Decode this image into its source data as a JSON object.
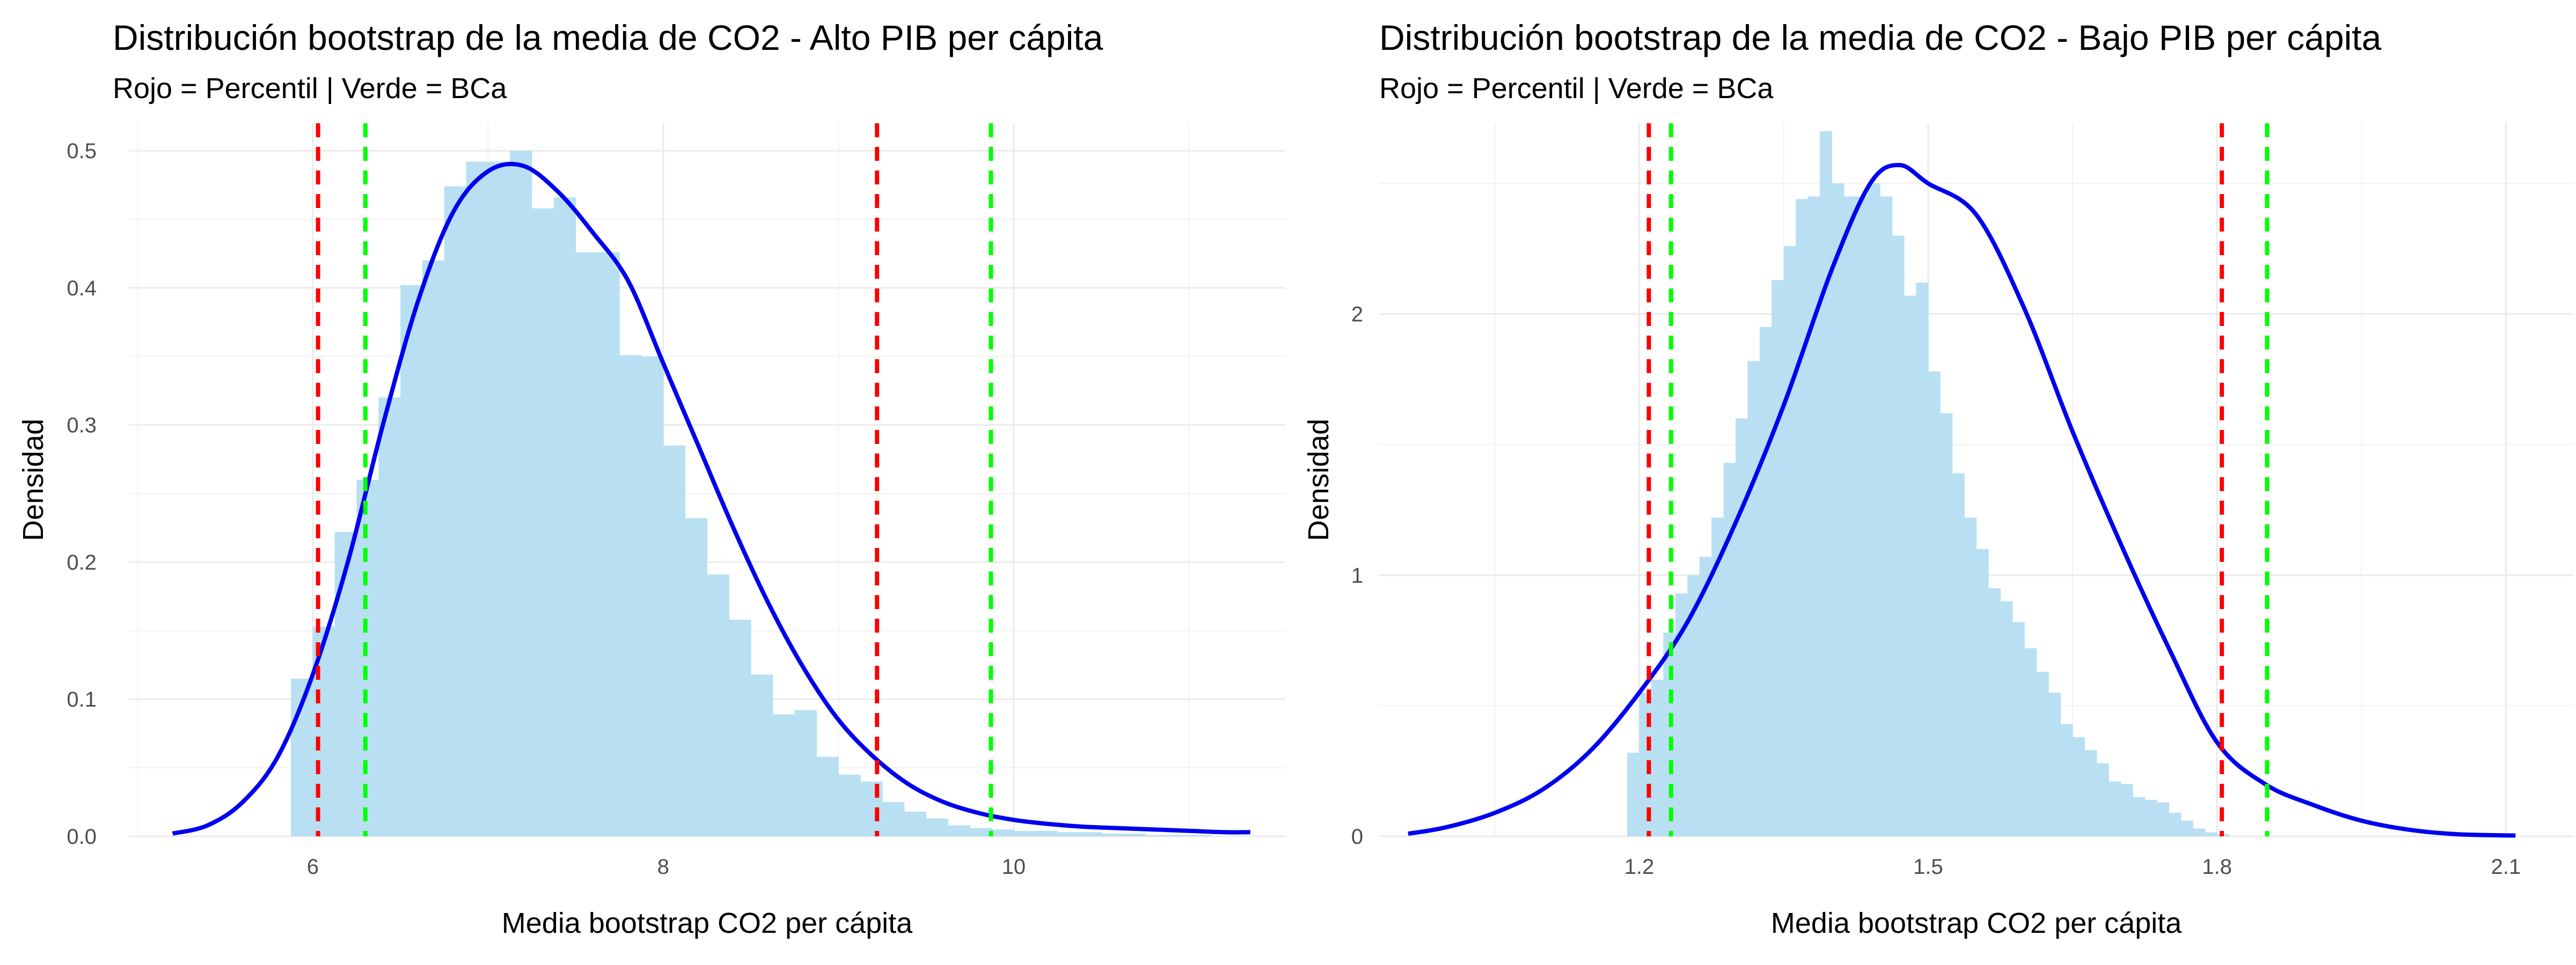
{
  "chart_data": [
    {
      "type": "histogram",
      "title": "Distribución bootstrap de la media de CO2 - Alto PIB per cápita",
      "subtitle": "Rojo = Percentil | Verde = BCa",
      "xlabel": "Media bootstrap CO2 per cápita",
      "ylabel": "Densidad",
      "xlim": [
        4.95,
        11.55
      ],
      "ylim": [
        0,
        0.52
      ],
      "x_ticks": [
        6,
        8,
        10
      ],
      "x_tick_labels": [
        "6",
        "8",
        "10"
      ],
      "y_ticks": [
        0.0,
        0.1,
        0.2,
        0.3,
        0.4,
        0.5
      ],
      "y_tick_labels": [
        "0.0",
        "0.1",
        "0.2",
        "0.3",
        "0.4",
        "0.5"
      ],
      "bin_width": 0.125,
      "bins_start": 5.875,
      "hist_values": [
        0.115,
        0.153,
        0.222,
        0.26,
        0.32,
        0.402,
        0.42,
        0.474,
        0.492,
        0.492,
        0.5,
        0.458,
        0.466,
        0.426,
        0.426,
        0.351,
        0.35,
        0.285,
        0.232,
        0.191,
        0.158,
        0.118,
        0.089,
        0.092,
        0.058,
        0.045,
        0.04,
        0.025,
        0.018,
        0.013,
        0.008,
        0.006,
        0.005,
        0.004,
        0.004,
        0.003,
        0.003,
        0.002,
        0.002,
        0.001,
        0.001,
        0.001
      ],
      "density_curve": {
        "x": [
          5.2,
          5.4,
          5.6,
          5.8,
          6.0,
          6.2,
          6.4,
          6.6,
          6.8,
          7.0,
          7.2,
          7.4,
          7.6,
          7.8,
          8.0,
          8.2,
          8.4,
          8.6,
          8.8,
          9.0,
          9.2,
          9.4,
          9.6,
          9.8,
          10.0,
          10.2,
          10.4,
          10.6,
          10.8,
          11.0,
          11.2,
          11.35
        ],
        "y": [
          0.002,
          0.008,
          0.025,
          0.058,
          0.118,
          0.2,
          0.3,
          0.39,
          0.455,
          0.485,
          0.489,
          0.47,
          0.44,
          0.405,
          0.345,
          0.285,
          0.225,
          0.17,
          0.123,
          0.085,
          0.058,
          0.038,
          0.025,
          0.017,
          0.012,
          0.009,
          0.007,
          0.006,
          0.005,
          0.004,
          0.003,
          0.003
        ],
        "color": "#0000ee"
      },
      "percentile_interval": [
        6.03,
        9.22
      ],
      "bca_interval": [
        6.3,
        9.87
      ],
      "percentile_color": "#ff0000",
      "bca_color": "#00ff00",
      "hist_color": "#b8e0f2"
    },
    {
      "type": "histogram",
      "title": "Distribución bootstrap de la media de CO2 - Bajo PIB per cápita",
      "subtitle": "Rojo = Percentil | Verde = BCa",
      "xlabel": "Media bootstrap CO2 per cápita",
      "ylabel": "Densidad",
      "xlim": [
        0.93,
        2.17
      ],
      "ylim": [
        0,
        2.73
      ],
      "x_ticks": [
        1.2,
        1.5,
        1.8,
        2.1
      ],
      "x_tick_labels": [
        "1.2",
        "1.5",
        "1.8",
        "2.1"
      ],
      "y_ticks": [
        0,
        1,
        2
      ],
      "y_tick_labels": [
        "0",
        "1",
        "2"
      ],
      "bin_width": 0.0125,
      "bins_start": 1.1875,
      "hist_values": [
        0.32,
        0.55,
        0.6,
        0.78,
        0.93,
        1.0,
        1.07,
        1.22,
        1.43,
        1.6,
        1.82,
        1.95,
        2.13,
        2.26,
        2.44,
        2.45,
        2.7,
        2.5,
        2.45,
        2.45,
        2.5,
        2.45,
        2.3,
        2.07,
        2.12,
        1.78,
        1.62,
        1.39,
        1.22,
        1.1,
        0.95,
        0.9,
        0.82,
        0.72,
        0.63,
        0.55,
        0.43,
        0.38,
        0.33,
        0.28,
        0.21,
        0.2,
        0.15,
        0.14,
        0.13,
        0.09,
        0.06,
        0.03,
        0.015,
        0.008
      ],
      "density_curve": {
        "x": [
          0.96,
          1.0,
          1.05,
          1.1,
          1.15,
          1.2,
          1.25,
          1.3,
          1.35,
          1.4,
          1.44,
          1.47,
          1.5,
          1.55,
          1.6,
          1.65,
          1.7,
          1.75,
          1.8,
          1.85,
          1.9,
          1.95,
          2.0,
          2.05,
          2.11
        ],
        "y": [
          0.01,
          0.035,
          0.09,
          0.18,
          0.33,
          0.55,
          0.82,
          1.2,
          1.65,
          2.17,
          2.5,
          2.57,
          2.5,
          2.38,
          2.02,
          1.55,
          1.12,
          0.72,
          0.36,
          0.2,
          0.12,
          0.06,
          0.025,
          0.008,
          0.003
        ],
        "color": "#0000ee"
      },
      "percentile_interval": [
        1.21,
        1.805
      ],
      "bca_interval": [
        1.233,
        1.852
      ],
      "percentile_color": "#ff0000",
      "bca_color": "#00ff00",
      "hist_color": "#b8e0f2"
    }
  ]
}
